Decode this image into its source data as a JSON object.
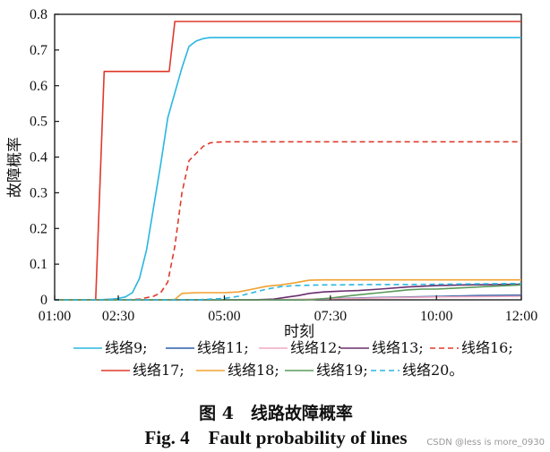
{
  "chart_data": {
    "type": "line",
    "title": "",
    "xlabel": "时刻",
    "ylabel": "故障概率",
    "xlim": [
      0,
      660
    ],
    "ylim": [
      0,
      0.8
    ],
    "x_ticks": [
      {
        "t": 0,
        "label": "01:00"
      },
      {
        "t": 90,
        "label": "02:30"
      },
      {
        "t": 240,
        "label": "05:00"
      },
      {
        "t": 390,
        "label": "07:30"
      },
      {
        "t": 540,
        "label": "10:00"
      },
      {
        "t": 660,
        "label": "12:00"
      }
    ],
    "y_ticks": [
      {
        "v": 0,
        "label": "0"
      },
      {
        "v": 0.1,
        "label": "0.1"
      },
      {
        "v": 0.2,
        "label": "0.2"
      },
      {
        "v": 0.3,
        "label": "0.3"
      },
      {
        "v": 0.4,
        "label": "0.4"
      },
      {
        "v": 0.5,
        "label": "0.5"
      },
      {
        "v": 0.6,
        "label": "0.6"
      },
      {
        "v": 0.7,
        "label": "0.7"
      },
      {
        "v": 0.8,
        "label": "0.8"
      }
    ],
    "series": [
      {
        "name": "线络9;",
        "color": "#29b6e0",
        "dash": false,
        "x": [
          0,
          40,
          60,
          80,
          90,
          100,
          110,
          120,
          130,
          140,
          150,
          160,
          170,
          180,
          190,
          200,
          210,
          220,
          230,
          240,
          250,
          260,
          280,
          300,
          330,
          360,
          420,
          480,
          540,
          600,
          660
        ],
        "y": [
          0,
          0,
          0,
          0.002,
          0.004,
          0.008,
          0.02,
          0.06,
          0.14,
          0.26,
          0.38,
          0.51,
          0.58,
          0.65,
          0.71,
          0.725,
          0.732,
          0.735,
          0.735,
          0.735,
          0.735,
          0.735,
          0.735,
          0.735,
          0.735,
          0.735,
          0.735,
          0.735,
          0.735,
          0.735,
          0.735
        ]
      },
      {
        "name": "线络11;",
        "color": "#2c5fa8",
        "dash": false,
        "x": [
          0,
          300,
          350,
          400,
          450,
          500,
          550,
          600,
          660
        ],
        "y": [
          0,
          0,
          0,
          0.004,
          0.006,
          0.008,
          0.01,
          0.012,
          0.013
        ]
      },
      {
        "name": "线络12;",
        "color": "#f2a8c0",
        "dash": false,
        "x": [
          0,
          300,
          360,
          420,
          480,
          540,
          600,
          660
        ],
        "y": [
          0,
          0,
          0.002,
          0.004,
          0.006,
          0.008,
          0.009,
          0.01
        ]
      },
      {
        "name": "线络13;",
        "color": "#6a2e6e",
        "dash": false,
        "x": [
          0,
          280,
          310,
          330,
          345,
          360,
          380,
          400,
          430,
          460,
          500,
          540,
          580,
          620,
          660
        ],
        "y": [
          0,
          0,
          0.002,
          0.008,
          0.012,
          0.018,
          0.022,
          0.024,
          0.026,
          0.03,
          0.036,
          0.04,
          0.042,
          0.043,
          0.044
        ]
      },
      {
        "name": "线络16;",
        "color": "#e03a2c",
        "dash": true,
        "x": [
          0,
          100,
          120,
          140,
          150,
          160,
          170,
          180,
          190,
          200,
          210,
          220,
          230,
          240,
          260,
          300,
          360,
          420,
          480,
          540,
          600,
          660
        ],
        "y": [
          0,
          0,
          0.002,
          0.01,
          0.02,
          0.05,
          0.15,
          0.3,
          0.39,
          0.41,
          0.43,
          0.44,
          0.442,
          0.443,
          0.443,
          0.443,
          0.443,
          0.443,
          0.443,
          0.443,
          0.443,
          0.443
        ]
      },
      {
        "name": "线络17;",
        "color": "#e0392b",
        "dash": false,
        "x": [
          0,
          58,
          70,
          80,
          100,
          140,
          162,
          170,
          180,
          220,
          300,
          400,
          500,
          600,
          660
        ],
        "y": [
          0,
          0,
          0.64,
          0.64,
          0.64,
          0.64,
          0.64,
          0.78,
          0.78,
          0.78,
          0.78,
          0.78,
          0.78,
          0.78,
          0.78
        ]
      },
      {
        "name": "线络18;",
        "color": "#f0a030",
        "dash": false,
        "x": [
          0,
          160,
          170,
          180,
          200,
          220,
          240,
          260,
          280,
          300,
          320,
          340,
          360,
          380,
          400,
          450,
          500,
          560,
          620,
          660
        ],
        "y": [
          0,
          0,
          0.001,
          0.018,
          0.02,
          0.02,
          0.02,
          0.022,
          0.03,
          0.038,
          0.042,
          0.048,
          0.055,
          0.056,
          0.056,
          0.056,
          0.056,
          0.056,
          0.056,
          0.056
        ]
      },
      {
        "name": "线络19;",
        "color": "#5a9a5a",
        "dash": false,
        "x": [
          0,
          360,
          390,
          420,
          440,
          460,
          480,
          500,
          520,
          540,
          560,
          580,
          600,
          620,
          640,
          660
        ],
        "y": [
          0,
          0,
          0.005,
          0.012,
          0.016,
          0.02,
          0.024,
          0.028,
          0.03,
          0.03,
          0.032,
          0.034,
          0.036,
          0.038,
          0.04,
          0.042
        ]
      },
      {
        "name": "线络20。",
        "color": "#29b6e0",
        "dash": true,
        "x": [
          0,
          200,
          240,
          260,
          280,
          300,
          320,
          340,
          360,
          380,
          400,
          450,
          500,
          550,
          600,
          660
        ],
        "y": [
          0,
          0,
          0.004,
          0.01,
          0.02,
          0.03,
          0.037,
          0.04,
          0.041,
          0.042,
          0.042,
          0.043,
          0.043,
          0.044,
          0.045,
          0.046
        ]
      }
    ]
  },
  "caption": {
    "cn": "图 4　线路故障概率",
    "en": "Fig. 4　Fault probability of lines"
  },
  "watermark": "CSDN @less is more_0930"
}
